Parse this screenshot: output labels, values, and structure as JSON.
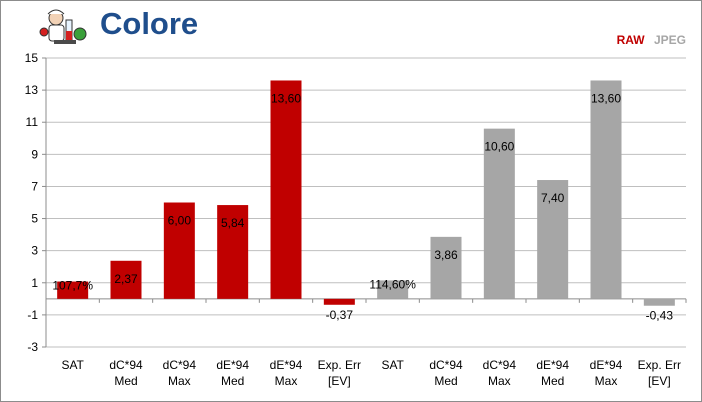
{
  "title": "Colore",
  "colors": {
    "raw": "#c00000",
    "jpeg": "#a6a6a6",
    "title": "#1f4e8c",
    "grid": "#bfbfbf"
  },
  "logo": {
    "icon": "scientist-mascot-icon"
  },
  "chart_data": {
    "type": "bar",
    "title": "Colore",
    "legend": {
      "position": "top-right",
      "entries": [
        "RAW",
        "JPEG"
      ]
    },
    "ylim": [
      -3,
      15
    ],
    "yticks": [
      -3,
      -1,
      1,
      3,
      5,
      7,
      9,
      11,
      13,
      15
    ],
    "grid": true,
    "categories": [
      [
        "SAT"
      ],
      [
        "dC*94",
        "Med"
      ],
      [
        "dC*94",
        "Max"
      ],
      [
        "dE*94",
        "Med"
      ],
      [
        "dE*94",
        "Max"
      ],
      [
        "Exp. Err",
        "[EV]"
      ],
      [
        "SAT"
      ],
      [
        "dC*94",
        "Med"
      ],
      [
        "dC*94",
        "Max"
      ],
      [
        "dE*94",
        "Med"
      ],
      [
        "dE*94",
        "Max"
      ],
      [
        "Exp. Err",
        "[EV]"
      ]
    ],
    "series": [
      {
        "name": "RAW",
        "values": [
          1.077,
          2.37,
          6.0,
          5.84,
          13.6,
          -0.37,
          null,
          null,
          null,
          null,
          null,
          null
        ],
        "labels": [
          "107,7%",
          "2,37",
          "6,00",
          "5,84",
          "13,60",
          "-0,37",
          "",
          "",
          "",
          "",
          "",
          ""
        ]
      },
      {
        "name": "JPEG",
        "values": [
          null,
          null,
          null,
          null,
          null,
          null,
          1.146,
          3.86,
          10.6,
          7.4,
          13.6,
          -0.43
        ],
        "labels": [
          "",
          "",
          "",
          "",
          "",
          "",
          "114,60%",
          "3,86",
          "10,60",
          "7,40",
          "13,60",
          "-0,43"
        ]
      }
    ]
  }
}
